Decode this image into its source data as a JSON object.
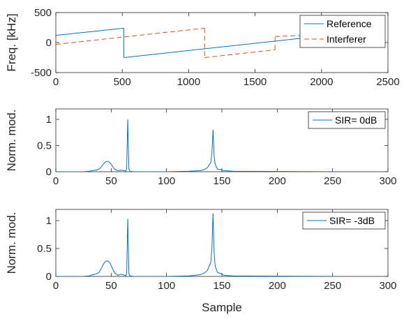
{
  "figure": {
    "xlabel": "Sample"
  },
  "chart_data": [
    {
      "type": "line",
      "title": "",
      "xlabel": "",
      "ylabel": "Freq. [kHz]",
      "xlim": [
        0,
        2500
      ],
      "ylim": [
        -500,
        500
      ],
      "xticks": [
        0,
        500,
        1000,
        1500,
        2000,
        2500
      ],
      "yticks": [
        -500,
        0,
        500
      ],
      "grid": false,
      "legend": "top-right",
      "series": [
        {
          "name": "Reference",
          "color": "#0072BD",
          "style": "solid",
          "segments": [
            [
              [
                0,
                120
              ],
              [
                512,
                240
              ]
            ],
            [
              [
                512,
                -250
              ],
              [
                2048,
                120
              ]
            ]
          ]
        },
        {
          "name": "Interferer",
          "color": "#D95319",
          "style": "dashed",
          "segments": [
            [
              [
                0,
                -30
              ],
              [
                1120,
                240
              ]
            ],
            [
              [
                1120,
                -250
              ],
              [
                1650,
                -120
              ]
            ],
            [
              [
                1650,
                100
              ],
              [
                2048,
                140
              ]
            ]
          ]
        }
      ]
    },
    {
      "type": "line",
      "title": "",
      "xlabel": "",
      "ylabel": "Norm. mod.",
      "xlim": [
        0,
        300
      ],
      "ylim": [
        0,
        1.2
      ],
      "xticks": [
        0,
        50,
        100,
        150,
        200,
        250,
        300
      ],
      "yticks": [
        0,
        0.5,
        1
      ],
      "ytick_labels": [
        "0",
        "0.5",
        "1"
      ],
      "grid": false,
      "legend": "top-right",
      "series": [
        {
          "name": "SIR= 0dB",
          "color": "#0072BD",
          "x": [
            0,
            25,
            30,
            33,
            36,
            39,
            41,
            43,
            45,
            47,
            49,
            51,
            53,
            56,
            59,
            62,
            63,
            64,
            65,
            66,
            67,
            70,
            100,
            120,
            130,
            134,
            137,
            140,
            141,
            142,
            143,
            144,
            146,
            149,
            152,
            160,
            256
          ],
          "y": [
            0,
            0,
            0.01,
            0.02,
            0.03,
            0.05,
            0.09,
            0.15,
            0.19,
            0.2,
            0.17,
            0.11,
            0.05,
            0.02,
            0.03,
            0.02,
            0.01,
            0.05,
            1.0,
            0.05,
            0.01,
            0,
            0,
            0.01,
            0.02,
            0.04,
            0.08,
            0.18,
            0.35,
            0.8,
            0.3,
            0.14,
            0.05,
            0.04,
            0.02,
            0.01,
            0
          ]
        }
      ]
    },
    {
      "type": "line",
      "title": "",
      "xlabel": "Sample",
      "ylabel": "Norm. mod.",
      "xlim": [
        0,
        300
      ],
      "ylim": [
        0,
        1.2
      ],
      "xticks": [
        0,
        50,
        100,
        150,
        200,
        250,
        300
      ],
      "yticks": [
        0,
        0.5,
        1
      ],
      "ytick_labels": [
        "0",
        "0.5",
        "1"
      ],
      "grid": false,
      "legend": "top-right",
      "series": [
        {
          "name": "SIR= -3dB",
          "color": "#0072BD",
          "x": [
            0,
            25,
            30,
            33,
            36,
            39,
            41,
            43,
            45,
            47,
            49,
            51,
            53,
            56,
            59,
            62,
            63,
            64,
            65,
            66,
            67,
            70,
            100,
            120,
            130,
            134,
            137,
            140,
            141,
            142,
            143,
            144,
            146,
            149,
            152,
            160,
            256
          ],
          "y": [
            0,
            0,
            0.01,
            0.03,
            0.04,
            0.07,
            0.14,
            0.22,
            0.27,
            0.28,
            0.24,
            0.15,
            0.07,
            0.02,
            0.04,
            0.02,
            0.01,
            0.05,
            1.03,
            0.05,
            0.01,
            0,
            0,
            0.01,
            0.03,
            0.06,
            0.11,
            0.25,
            0.5,
            1.13,
            0.42,
            0.18,
            0.07,
            0.05,
            0.02,
            0.01,
            0
          ]
        }
      ]
    }
  ]
}
